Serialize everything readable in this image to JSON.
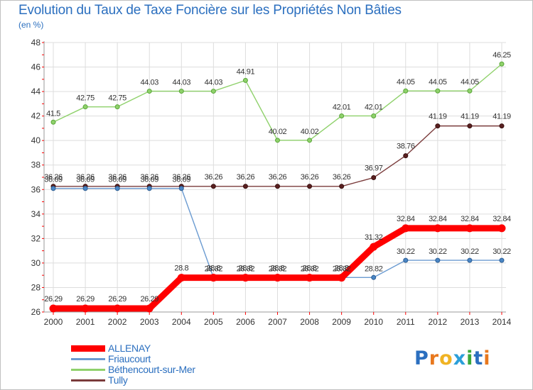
{
  "title": "Evolution du Taux de Taxe Foncière sur les Propriétés Non Bâties",
  "subtitle": "(en %)",
  "logo": {
    "text": "Proxiti",
    "letters": [
      "P",
      "r",
      "o",
      "x",
      "i",
      "t",
      "i"
    ],
    "colors": [
      "#2b6fbf",
      "#e8781e",
      "#f0b323",
      "#2b9fd9",
      "#3aa83a",
      "#2b6fbf",
      "#e8781e"
    ]
  },
  "chart_data": {
    "type": "line",
    "title": "Evolution du Taux de Taxe Foncière sur les Propriétés Non Bâties",
    "ylabel": "(en %)",
    "xlabel": "",
    "x": [
      "2000",
      "2001",
      "2002",
      "2003",
      "2004",
      "2005",
      "2006",
      "2007",
      "2008",
      "2009",
      "2010",
      "2011",
      "2012",
      "2013",
      "2014"
    ],
    "ylim": [
      26,
      48
    ],
    "yticks": [
      "26",
      "28",
      "30",
      "32",
      "34",
      "36",
      "38",
      "40",
      "42",
      "44",
      "46",
      "48"
    ],
    "grid": true,
    "legend": "bottom-left",
    "series": [
      {
        "name": "ALLENAY",
        "color": "#ff0000",
        "values": [
          26.29,
          26.29,
          26.29,
          26.29,
          28.8,
          28.8,
          28.8,
          28.8,
          28.8,
          28.8,
          31.32,
          32.84,
          32.84,
          32.84,
          32.84
        ],
        "labels": [
          "26.29",
          "26.29",
          "26.29",
          "26.29",
          "28.8",
          "28.8",
          "28.8",
          "28.8",
          "28.8",
          "28.8",
          "31.32",
          "32.84",
          "32.84",
          "32.84",
          "32.84"
        ]
      },
      {
        "name": "Friaucourt",
        "color": "#6b9bd1",
        "values": [
          36.09,
          36.09,
          36.09,
          36.09,
          36.09,
          28.82,
          28.82,
          28.82,
          28.82,
          28.82,
          28.82,
          30.22,
          30.22,
          30.22,
          30.22
        ],
        "labels": [
          "36.09",
          "36.09",
          "36.09",
          "36.09",
          "36.09",
          "28.82",
          "28.82",
          "28.82",
          "28.82",
          "28.82",
          "28.82",
          "30.22",
          "30.22",
          "30.22",
          "30.22"
        ]
      },
      {
        "name": "Béthencourt-sur-Mer",
        "color": "#8fd16b",
        "values": [
          41.5,
          42.75,
          42.75,
          44.03,
          44.03,
          44.03,
          44.91,
          40.02,
          40.02,
          42.01,
          42.01,
          44.05,
          44.05,
          44.05,
          46.25
        ],
        "labels": [
          "41.5",
          "42.75",
          "42.75",
          "44.03",
          "44.03",
          "44.03",
          "44.91",
          "40.02",
          "40.02",
          "42.01",
          "42.01",
          "44.05",
          "44.05",
          "44.05",
          "46.25"
        ]
      },
      {
        "name": "Tully",
        "color": "#7a3b3b",
        "values": [
          36.26,
          36.26,
          36.26,
          36.26,
          36.26,
          36.26,
          36.26,
          36.26,
          36.26,
          36.26,
          36.97,
          38.76,
          41.19,
          41.19,
          41.19
        ],
        "labels": [
          "36.26",
          "36.26",
          "36.26",
          "36.26",
          "36.26",
          "36.26",
          "36.26",
          "36.26",
          "36.26",
          "36.26",
          "36.97",
          "38.76",
          "41.19",
          "41.19",
          "41.19"
        ]
      }
    ]
  }
}
